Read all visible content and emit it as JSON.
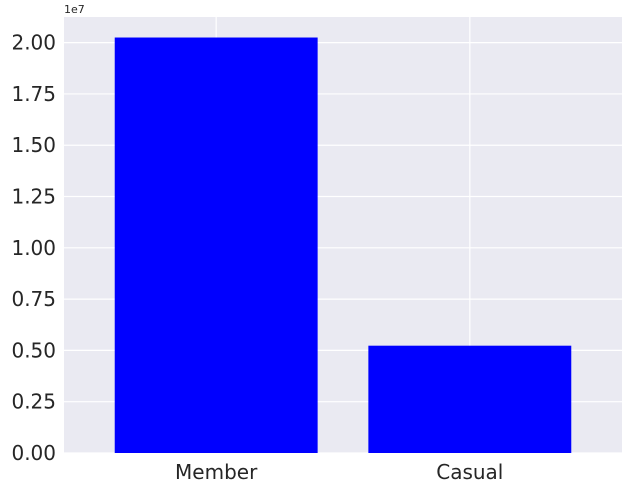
{
  "chart_data": {
    "type": "bar",
    "categories": [
      "Member",
      "Casual"
    ],
    "values": [
      20250000,
      5230000
    ],
    "title": "",
    "xlabel": "",
    "ylabel": "",
    "ylim": [
      0,
      21250000
    ],
    "y_ticks": [
      0,
      2500000,
      5000000,
      7500000,
      10000000,
      12500000,
      15000000,
      17500000,
      20000000
    ],
    "y_tick_labels": [
      "0.00",
      "0.25",
      "0.50",
      "0.75",
      "1.00",
      "1.25",
      "1.50",
      "1.75",
      "2.00"
    ],
    "y_offset_label": "1e7",
    "grid": true,
    "bar_color": "#0000ff",
    "background_color": "#eaeaf2",
    "grid_color": "#ffffff"
  }
}
